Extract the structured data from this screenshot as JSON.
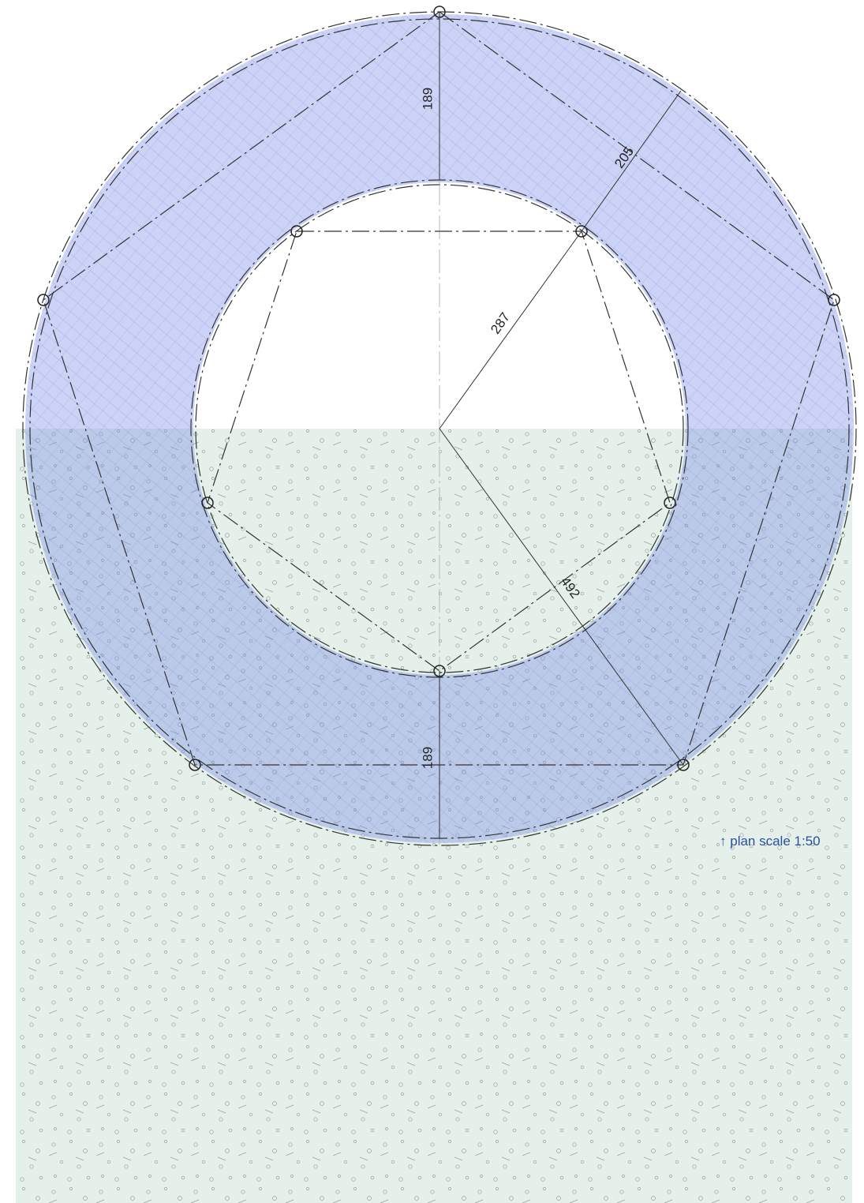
{
  "dimensions": [
    "189",
    "205",
    "287",
    "492",
    "189"
  ],
  "scale_note": "plan scale 1:50"
}
